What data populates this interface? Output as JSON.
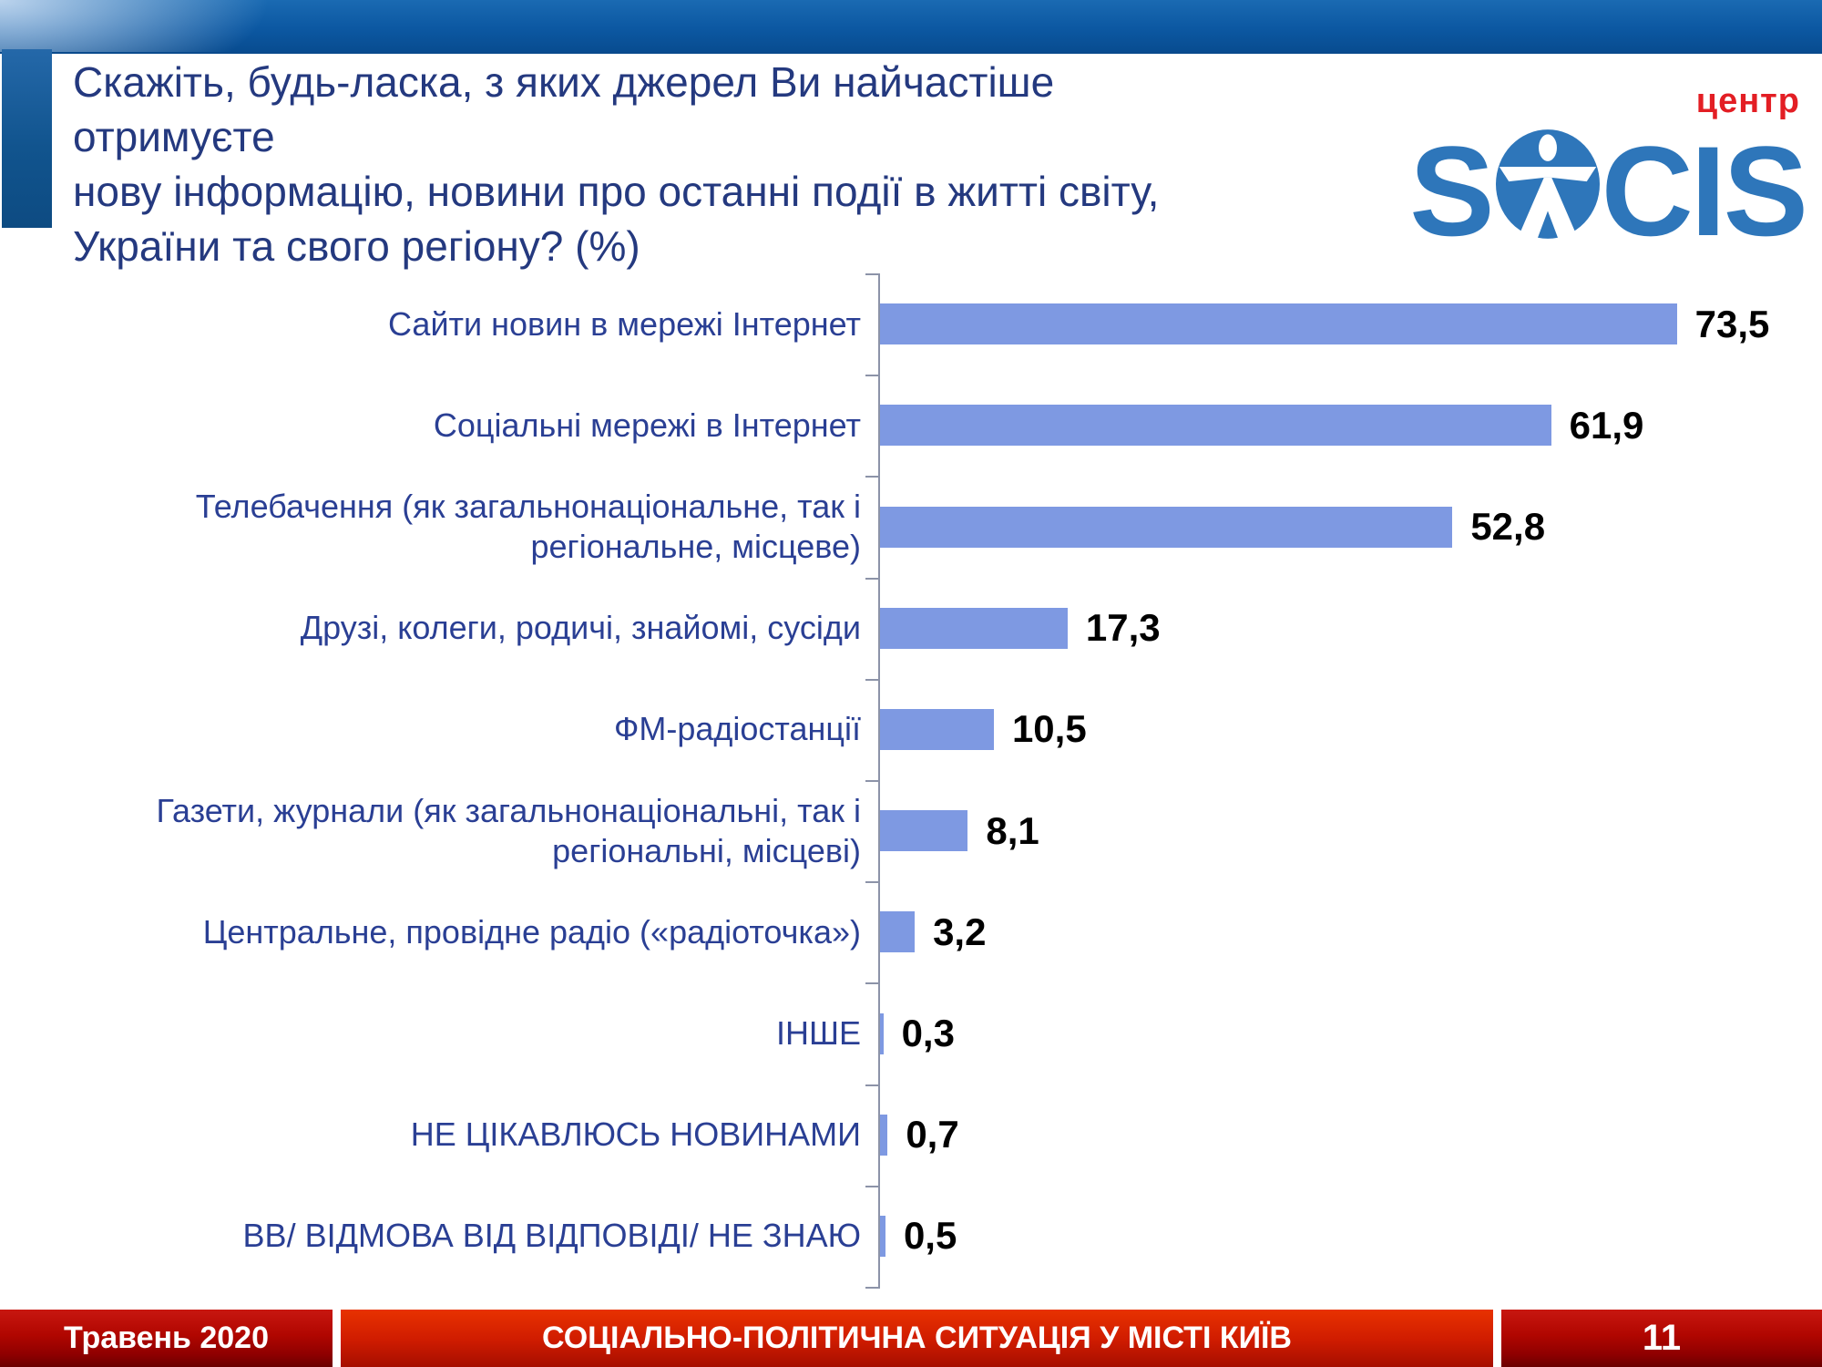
{
  "header": {
    "title_lines": [
      "Скажіть, будь-ласка, з яких джерел Ви найчастіше отримуєте",
      "нову інформацію, новини про останні події в житті світу,",
      "України та свого регіону? (%)"
    ]
  },
  "logo": {
    "tag": "центр",
    "left": "S",
    "right": "CIS",
    "brand_blue": "#2e76ba",
    "tag_red": "#e31e24"
  },
  "chart_data": {
    "type": "bar",
    "orientation": "horizontal",
    "title": "",
    "xlabel": "",
    "ylabel": "",
    "xlim": [
      0,
      80
    ],
    "grid": false,
    "legend": false,
    "categories": [
      "Сайти новин в мережі Інтернет",
      "Соціальні мережі в Інтернет",
      "Телебачення (як загальнонаціональне, так і регіональне, місцеве)",
      "Друзі, колеги, родичі, знайомі, сусіди",
      "ФМ-радіостанції",
      "Газети, журнали (як загальнонаціональні, так і регіональні, місцеві)",
      "Центральне, провідне радіо («радіоточка»)",
      "ІНШЕ",
      "НЕ ЦІКАВЛЮСЬ НОВИНАМИ",
      "ВВ/ ВІДМОВА ВІД ВІДПОВІДІ/ НЕ ЗНАЮ"
    ],
    "values": [
      73.5,
      61.9,
      52.8,
      17.3,
      10.5,
      8.1,
      3.2,
      0.3,
      0.7,
      0.5
    ],
    "value_labels": [
      "73,5",
      "61,9",
      "52,8",
      "17,3",
      "10,5",
      "8,1",
      "3,2",
      "0,3",
      "0,7",
      "0,5"
    ],
    "bar_color": "#7e99e2",
    "label_color": "#2a3f94",
    "value_color": "#000000",
    "axis_color": "#8c93a8"
  },
  "footer": {
    "date": "Травень 2020",
    "title": "СОЦІАЛЬНО-ПОЛІТИЧНА СИТУАЦІЯ У МІСТІ КИЇВ",
    "page": "11"
  }
}
